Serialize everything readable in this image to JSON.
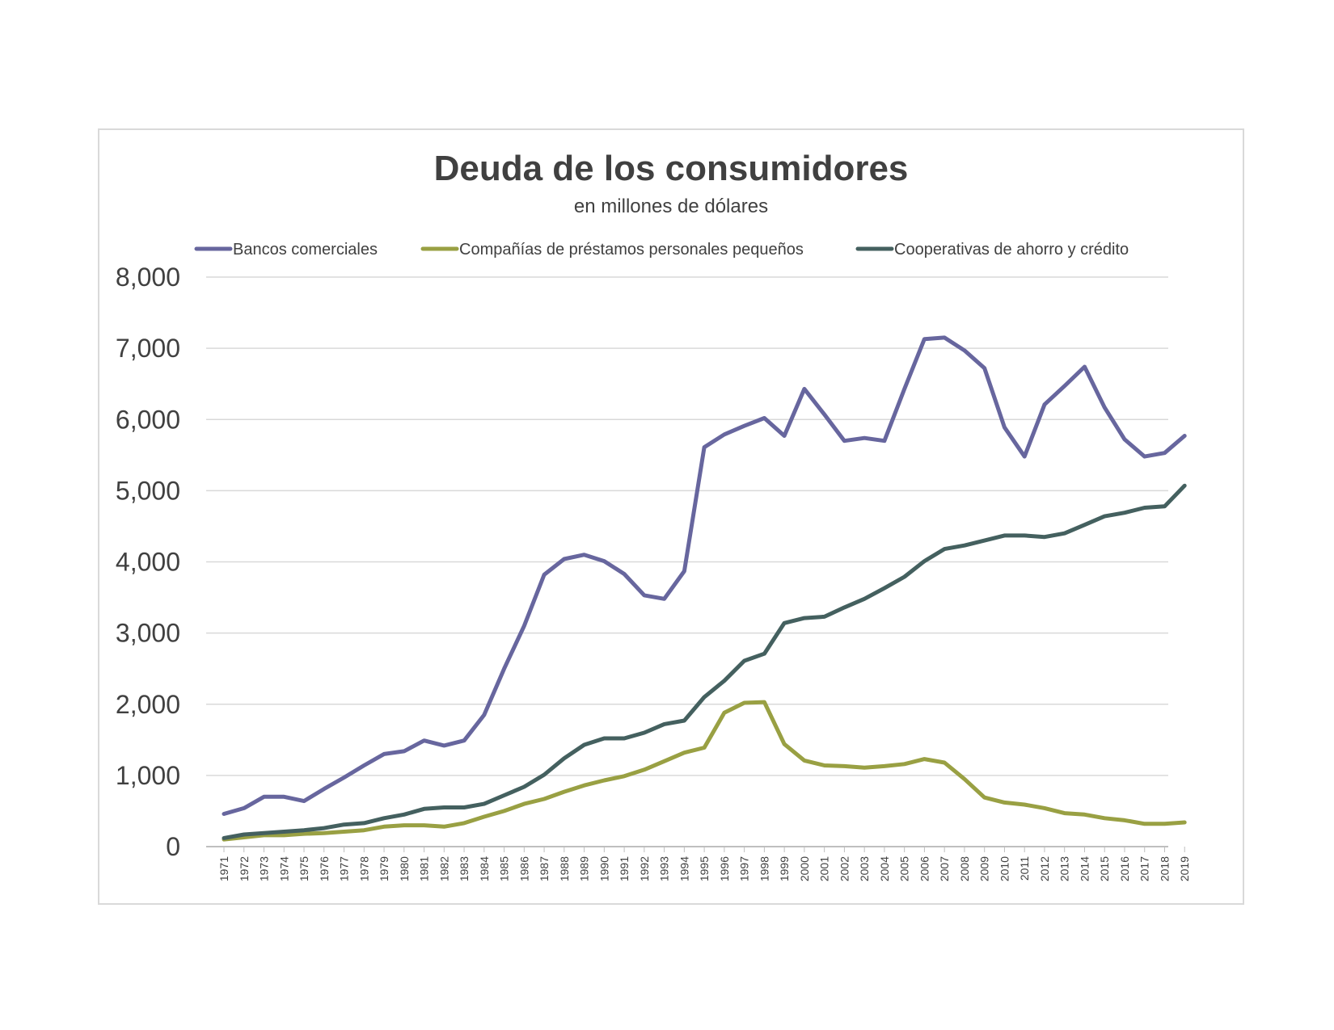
{
  "chart_data": {
    "type": "line",
    "title": "Deuda de los consumidores",
    "subtitle": "en millones  de dólares",
    "ylim": [
      0,
      8000
    ],
    "yticks": [
      "0",
      "1,000",
      "2,000",
      "3,000",
      "4,000",
      "5,000",
      "6,000",
      "7,000",
      "8,000"
    ],
    "grid": true,
    "legend_position": "top",
    "categories": [
      "1971",
      "1972",
      "1973",
      "1974",
      "1975",
      "1976",
      "1977",
      "1978",
      "1979",
      "1980",
      "1981",
      "1982",
      "1983",
      "1984",
      "1985",
      "1986",
      "1987",
      "1988",
      "1989",
      "1990",
      "1991",
      "1992",
      "1993",
      "1994",
      "1995",
      "1996",
      "1997",
      "1998",
      "1999",
      "2000",
      "2001",
      "2002",
      "2003",
      "2004",
      "2005",
      "2006",
      "2007",
      "2008",
      "2009",
      "2010",
      "2011",
      "2012",
      "2013",
      "2014",
      "2015",
      "2016",
      "2017",
      "2018",
      "2019"
    ],
    "series": [
      {
        "name": "Bancos comerciales",
        "color": "#67669e",
        "values": [
          460,
          540,
          700,
          700,
          640,
          810,
          970,
          1140,
          1300,
          1340,
          1490,
          1420,
          1490,
          1850,
          2500,
          3100,
          3820,
          4040,
          4100,
          4010,
          3830,
          3530,
          3480,
          3870,
          5610,
          5790,
          5910,
          6020,
          5770,
          6430,
          6070,
          5700,
          5740,
          5700,
          6430,
          7130,
          7150,
          6970,
          6720,
          5890,
          5480,
          6210,
          6470,
          6740,
          6170,
          5720,
          5480,
          5530,
          5770
        ]
      },
      {
        "name": "Compañías de préstamos personales pequeños",
        "color": "#99a043",
        "values": [
          100,
          130,
          160,
          160,
          180,
          190,
          210,
          230,
          280,
          300,
          300,
          280,
          330,
          420,
          500,
          600,
          670,
          770,
          860,
          930,
          990,
          1080,
          1200,
          1320,
          1390,
          1880,
          2020,
          2030,
          1440,
          1210,
          1140,
          1130,
          1110,
          1130,
          1160,
          1230,
          1180,
          950,
          690,
          620,
          590,
          540,
          470,
          450,
          400,
          370,
          320,
          320,
          340
        ]
      },
      {
        "name": "Cooperativas de ahorro y crédito",
        "color": "#44605f",
        "values": [
          120,
          170,
          190,
          210,
          230,
          260,
          310,
          330,
          400,
          450,
          530,
          550,
          550,
          600,
          720,
          840,
          1010,
          1240,
          1430,
          1520,
          1520,
          1600,
          1720,
          1770,
          2100,
          2330,
          2610,
          2710,
          3140,
          3210,
          3230,
          3360,
          3480,
          3630,
          3790,
          4010,
          4180,
          4230,
          4300,
          4370,
          4370,
          4350,
          4400,
          4520,
          4640,
          4690,
          4760,
          4780,
          5070
        ]
      }
    ]
  }
}
